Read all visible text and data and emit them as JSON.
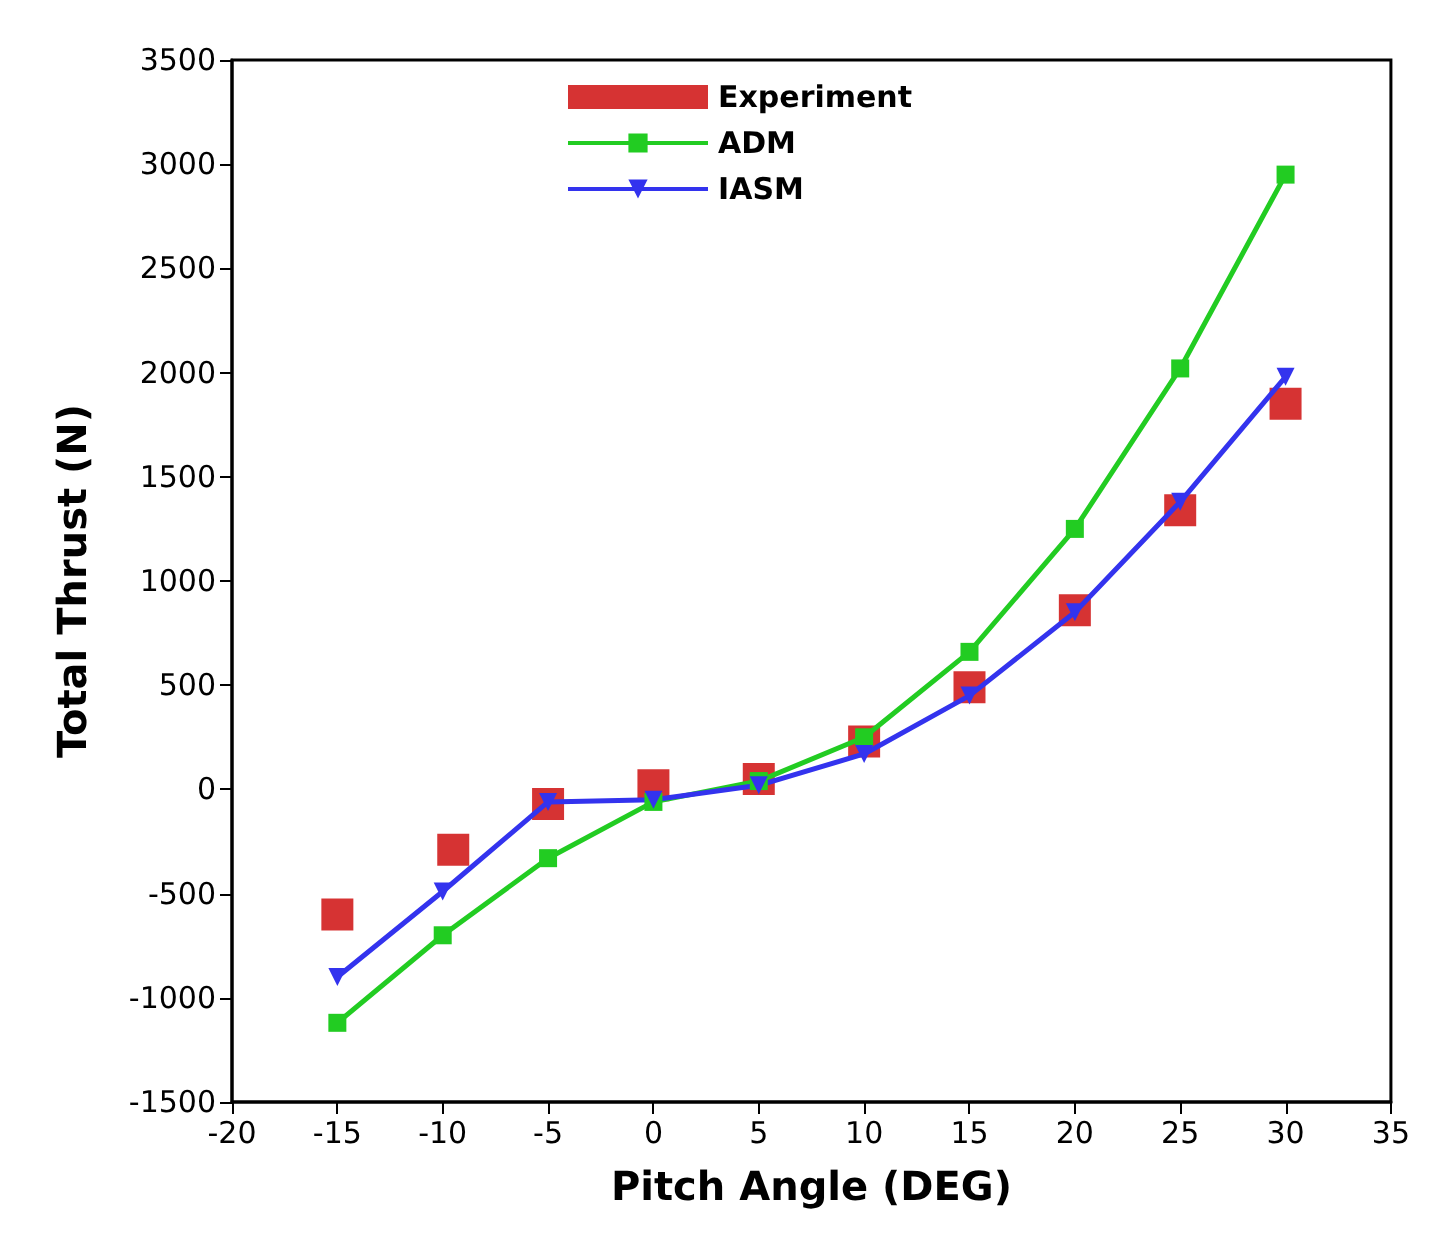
{
  "chart_data": {
    "type": "line",
    "xlabel": "Pitch Angle (DEG)",
    "ylabel": "Total Thrust (N)",
    "xlim": [
      -20,
      35
    ],
    "xticks": [
      -20,
      -15,
      -10,
      -5,
      0,
      5,
      10,
      15,
      20,
      25,
      30,
      35
    ],
    "ylim": [
      -1500,
      3500
    ],
    "yticks": [
      -1500,
      -1000,
      -500,
      0,
      500,
      1000,
      1500,
      2000,
      2500,
      3000,
      3500
    ],
    "legend": "top",
    "series": [
      {
        "name": "Experiment",
        "type": "scatter",
        "marker": "square",
        "color": "#cc0000",
        "x": [
          -15,
          -9.5,
          -5,
          0,
          5,
          10,
          15,
          20,
          25,
          30
        ],
        "values": [
          -600,
          -290,
          -70,
          20,
          50,
          230,
          490,
          860,
          1340,
          1850
        ]
      },
      {
        "name": "ADM",
        "marker": "square",
        "color": "#22cc22",
        "x": [
          -15,
          -10,
          -5,
          0,
          5,
          10,
          15,
          20,
          25,
          30
        ],
        "values": [
          -1120,
          -700,
          -330,
          -60,
          40,
          250,
          660,
          1250,
          2020,
          2950
        ]
      },
      {
        "name": "IASM",
        "marker": "triangle",
        "color": "#3333ee",
        "x": [
          -15,
          -10,
          -5,
          0,
          5,
          10,
          15,
          20,
          25,
          30
        ],
        "values": [
          -900,
          -490,
          -60,
          -50,
          20,
          170,
          450,
          850,
          1380,
          1980
        ]
      }
    ]
  }
}
